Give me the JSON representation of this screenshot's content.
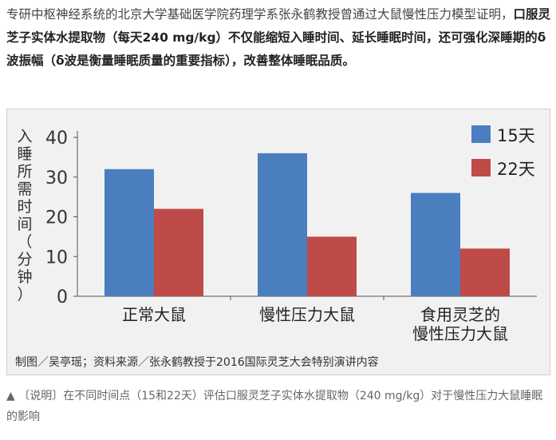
{
  "intro": {
    "part1": "专研中枢神经系统的北京大学基础医学院药理学系张永鹤教授曾通过大鼠慢性压力模型证明，",
    "part2": "口服灵芝子实体水提取物（每天240 mg/kg）不仅能缩短入睡时间、延长睡眠时间，还可强化深睡期的δ波振幅（δ波是衡量睡眠质量的重要指标），改善整体睡眠品质。"
  },
  "chart_data": {
    "type": "bar",
    "categories": [
      "正常大鼠",
      "慢性压力大鼠",
      "食用灵芝的\n慢性压力大鼠"
    ],
    "series": [
      {
        "name": "15天",
        "values": [
          32,
          36,
          26
        ],
        "color": "#4a7ebf"
      },
      {
        "name": "22天",
        "values": [
          22,
          15,
          12
        ],
        "color": "#bf4b48"
      }
    ],
    "ylabel": "入睡所需时间（分钟）",
    "ylim": [
      0,
      40
    ],
    "yticks": [
      0,
      10,
      20,
      30,
      40
    ],
    "grid": false,
    "legend": "top-right",
    "credit": "制图／吴亭瑶；资料来源／张永鹤教授于2016国际灵芝大会特别演讲内容"
  },
  "caption": "▲ 〔说明〕在不同时间点（15和22天）评估口服灵芝子实体水提取物（240 mg/kg）对于慢性压力大鼠睡眠的影响"
}
